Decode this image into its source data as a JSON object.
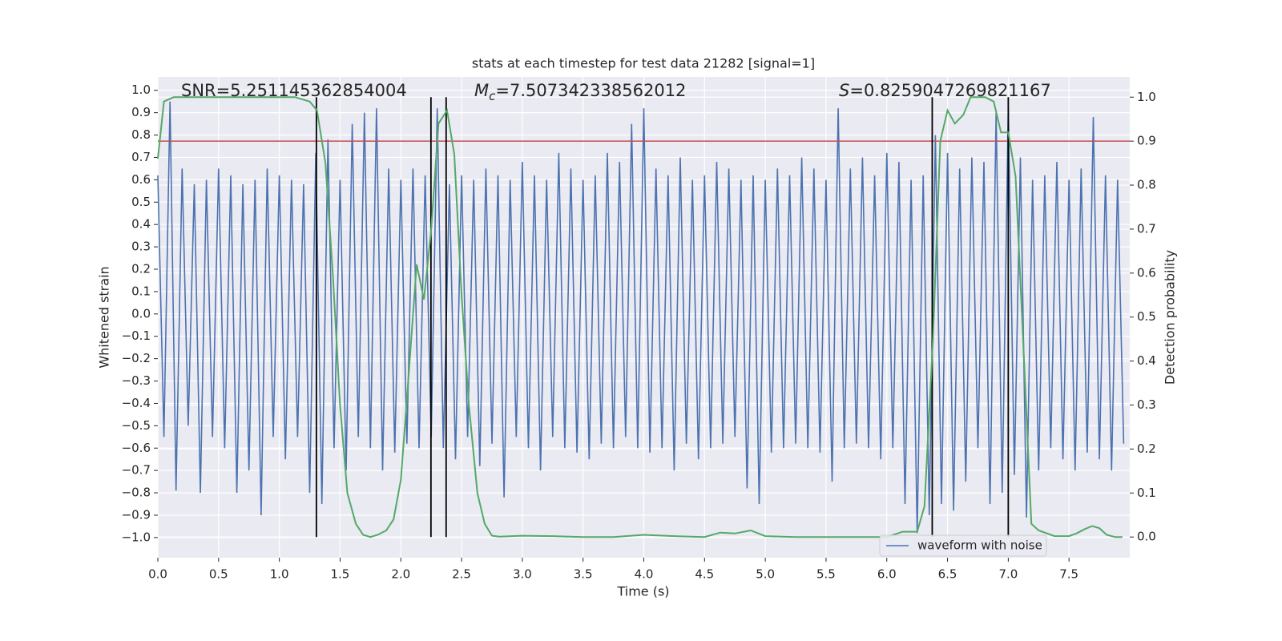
{
  "chart_data": {
    "type": "line",
    "title": "stats at each timestep for test data 21282 [signal=1]",
    "x_label": "Time (s)",
    "y_label": "Whitened strain",
    "y2_label": "Detection probability",
    "xlim": [
      0,
      8.0
    ],
    "ylim": [
      -1.09,
      1.06
    ],
    "y2lim": [
      -0.047,
      1.046
    ],
    "grid": true,
    "legend_loc": "lower right",
    "xticks": [
      {
        "value": 0,
        "label": "0.0"
      },
      {
        "value": 0.5,
        "label": "0.5"
      },
      {
        "value": 1,
        "label": "1.0"
      },
      {
        "value": 1.5,
        "label": "1.5"
      },
      {
        "value": 2,
        "label": "2.0"
      },
      {
        "value": 2.5,
        "label": "2.5"
      },
      {
        "value": 3,
        "label": "3.0"
      },
      {
        "value": 3.5,
        "label": "3.5"
      },
      {
        "value": 4,
        "label": "4.0"
      },
      {
        "value": 4.5,
        "label": "4.5"
      },
      {
        "value": 5,
        "label": "5.0"
      },
      {
        "value": 5.5,
        "label": "5.5"
      },
      {
        "value": 6,
        "label": "6.0"
      },
      {
        "value": 6.5,
        "label": "6.5"
      },
      {
        "value": 7,
        "label": "7.0"
      },
      {
        "value": 7.5,
        "label": "7.5"
      }
    ],
    "yticks": [
      {
        "value": 1,
        "label": "1.0"
      },
      0.9,
      0.8,
      0.7,
      0.6,
      0.5,
      0.4,
      0.3,
      0.2,
      0.1,
      {
        "value": 0,
        "label": "0.0"
      },
      {
        "value": -0.1,
        "label": "−0.1"
      },
      {
        "value": -0.2,
        "label": "−0.2"
      },
      {
        "value": -0.3,
        "label": "−0.3"
      },
      {
        "value": -0.4,
        "label": "−0.4"
      },
      {
        "value": -0.5,
        "label": "−0.5"
      },
      {
        "value": -0.6,
        "label": "−0.6"
      },
      {
        "value": -0.7,
        "label": "−0.7"
      },
      {
        "value": -0.8,
        "label": "−0.8"
      },
      {
        "value": -0.9,
        "label": "−0.9"
      },
      {
        "value": -1,
        "label": "−1.0"
      }
    ],
    "y2ticks": [
      {
        "value": 0,
        "label": "0.0"
      },
      0.1,
      0.2,
      0.3,
      0.4,
      0.5,
      0.6,
      0.7,
      0.8,
      0.9,
      {
        "value": 1,
        "label": "1.0"
      }
    ],
    "annotations": [
      {
        "text": "SNR=5.251145362854004"
      },
      {
        "symbol": "M",
        "subscript": "c",
        "text": "=7.507342338562012"
      },
      {
        "symbol": "S",
        "text": "=0.8259047269821167"
      }
    ],
    "series": [
      {
        "name": "waveform with noise",
        "color": "#4c72b0",
        "x": [
          0,
          0.05,
          0.1,
          0.15,
          0.2,
          0.25,
          0.3,
          0.35,
          0.4,
          0.45,
          0.5,
          0.55,
          0.6,
          0.65,
          0.7,
          0.75,
          0.8,
          0.85,
          0.9,
          0.95,
          1,
          1.05,
          1.1,
          1.15,
          1.2,
          1.25,
          1.3,
          1.35,
          1.4,
          1.45,
          1.5,
          1.55,
          1.6,
          1.65,
          1.7,
          1.75,
          1.8,
          1.85,
          1.9,
          1.95,
          2,
          2.05,
          2.1,
          2.15,
          2.2,
          2.25,
          2.3,
          2.35,
          2.4,
          2.45,
          2.5,
          2.55,
          2.6,
          2.65,
          2.7,
          2.75,
          2.8,
          2.85,
          2.9,
          2.95,
          3,
          3.05,
          3.1,
          3.15,
          3.2,
          3.25,
          3.3,
          3.35,
          3.4,
          3.45,
          3.5,
          3.55,
          3.6,
          3.65,
          3.7,
          3.75,
          3.8,
          3.85,
          3.9,
          3.95,
          4,
          4.05,
          4.1,
          4.15,
          4.2,
          4.25,
          4.3,
          4.35,
          4.4,
          4.45,
          4.5,
          4.55,
          4.6,
          4.65,
          4.7,
          4.75,
          4.8,
          4.85,
          4.9,
          4.95,
          5,
          5.05,
          5.1,
          5.15,
          5.2,
          5.25,
          5.3,
          5.35,
          5.4,
          5.45,
          5.5,
          5.55,
          5.6,
          5.65,
          5.7,
          5.75,
          5.8,
          5.85,
          5.9,
          5.95,
          6,
          6.05,
          6.1,
          6.15,
          6.2,
          6.25,
          6.3,
          6.35,
          6.4,
          6.45,
          6.5,
          6.55,
          6.6,
          6.65,
          6.7,
          6.75,
          6.8,
          6.85,
          6.9,
          6.95,
          7,
          7.05,
          7.1,
          7.15,
          7.2,
          7.25,
          7.3,
          7.35,
          7.4,
          7.45,
          7.5,
          7.55,
          7.6,
          7.65,
          7.7,
          7.75,
          7.8,
          7.85,
          7.9,
          7.95
        ],
        "values": [
          0.62,
          -0.55,
          0.95,
          -0.79,
          0.65,
          -0.5,
          0.58,
          -0.8,
          0.6,
          -0.55,
          0.65,
          -0.6,
          0.62,
          -0.8,
          0.58,
          -0.7,
          0.6,
          -0.9,
          0.65,
          -0.55,
          0.62,
          -0.65,
          0.6,
          -0.55,
          0.58,
          -0.8,
          0.72,
          -0.85,
          0.78,
          -0.6,
          0.6,
          -0.7,
          0.85,
          -0.55,
          0.9,
          -0.6,
          0.92,
          -0.7,
          0.65,
          -0.62,
          0.6,
          -0.58,
          0.65,
          -0.6,
          0.62,
          -0.55,
          0.92,
          -0.6,
          0.58,
          -0.65,
          0.62,
          -0.55,
          0.6,
          -0.68,
          0.65,
          -0.58,
          0.62,
          -0.82,
          0.6,
          -0.55,
          0.68,
          -0.6,
          0.62,
          -0.7,
          0.6,
          -0.55,
          0.72,
          -0.6,
          0.65,
          -0.62,
          0.6,
          -0.65,
          0.62,
          -0.58,
          0.72,
          -0.6,
          0.68,
          -0.55,
          0.85,
          -0.6,
          0.92,
          -0.62,
          0.65,
          -0.6,
          0.62,
          -0.7,
          0.7,
          -0.58,
          0.6,
          -0.65,
          0.62,
          -0.6,
          0.68,
          -0.58,
          0.65,
          -0.55,
          0.6,
          -0.78,
          0.62,
          -0.85,
          0.6,
          -0.62,
          0.65,
          -0.6,
          0.62,
          -0.58,
          0.7,
          -0.6,
          0.65,
          -0.62,
          0.6,
          -0.75,
          0.92,
          -0.6,
          0.65,
          -0.58,
          0.7,
          -0.6,
          0.62,
          -0.65,
          0.72,
          -0.6,
          0.68,
          -0.85,
          0.6,
          -0.98,
          0.62,
          -0.9,
          0.8,
          -0.85,
          0.72,
          -0.88,
          0.65,
          -0.75,
          0.7,
          -0.6,
          0.68,
          -0.85,
          0.9,
          -0.8,
          0.92,
          -0.72,
          0.7,
          -0.91,
          0.6,
          -0.7,
          0.62,
          -0.6,
          0.68,
          -0.65,
          0.6,
          -0.7,
          0.65,
          -0.62,
          0.88,
          -0.65,
          0.62,
          -0.7,
          0.6,
          -0.58
        ]
      }
    ],
    "probability": {
      "color": "#55a868",
      "axis": "y2",
      "x": [
        0,
        0.05,
        0.13,
        0.25,
        0.5,
        0.75,
        1,
        1.13,
        1.25,
        1.31,
        1.38,
        1.44,
        1.5,
        1.56,
        1.63,
        1.69,
        1.75,
        1.81,
        1.88,
        1.94,
        2,
        2.06,
        2.13,
        2.19,
        2.25,
        2.31,
        2.38,
        2.44,
        2.5,
        2.56,
        2.63,
        2.69,
        2.75,
        2.81,
        3,
        3.25,
        3.5,
        3.75,
        4,
        4.25,
        4.5,
        4.63,
        4.75,
        4.88,
        5,
        5.25,
        5.5,
        5.75,
        6,
        6.13,
        6.25,
        6.31,
        6.38,
        6.44,
        6.5,
        6.56,
        6.63,
        6.69,
        6.75,
        6.81,
        6.88,
        6.94,
        7,
        7.06,
        7.13,
        7.19,
        7.25,
        7.38,
        7.5,
        7.56,
        7.63,
        7.69,
        7.75,
        7.81,
        7.88,
        7.94
      ],
      "values": [
        0.86,
        0.99,
        1,
        1,
        1,
        1,
        1,
        1,
        0.99,
        0.97,
        0.85,
        0.6,
        0.3,
        0.1,
        0.03,
        0.005,
        0,
        0.005,
        0.015,
        0.04,
        0.13,
        0.35,
        0.62,
        0.54,
        0.7,
        0.94,
        0.97,
        0.87,
        0.55,
        0.3,
        0.1,
        0.03,
        0.003,
        0.001,
        0.003,
        0.002,
        0,
        0,
        0.005,
        0.002,
        0,
        0.01,
        0.008,
        0.015,
        0.002,
        0,
        0,
        0,
        0,
        0.012,
        0.012,
        0.07,
        0.45,
        0.9,
        0.97,
        0.94,
        0.96,
        1,
        1,
        1,
        0.99,
        0.92,
        0.92,
        0.82,
        0.4,
        0.03,
        0.015,
        0.002,
        0.002,
        0.008,
        0.018,
        0.025,
        0.02,
        0.005,
        0,
        0
      ]
    },
    "threshold": {
      "color": "#c44e52",
      "axis": "y2",
      "value": 0.9
    },
    "vlines": {
      "color": "#000000",
      "axis": "y2",
      "x": [
        1.305,
        2.248,
        2.373,
        6.374,
        7.0
      ],
      "ymin": 0,
      "ymax": 1
    }
  }
}
